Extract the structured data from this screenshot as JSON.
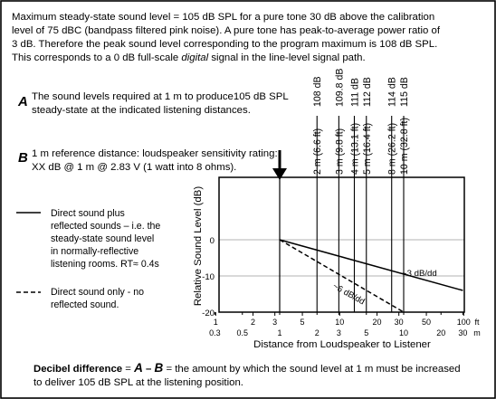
{
  "intro": {
    "line1": "Maximum steady-state sound level = 105 dB SPL for a pure tone 30 dB above the calibration",
    "line2": "level of 75 dBC (bandpass filtered pink noise). A pure tone has peak-to-average power ratio of",
    "line3": "3 dB. Therefore the peak sound level corresponding to the program maximum is 108 dB SPL.",
    "line4_pre": "This corresponds to a 0 dB full-scale ",
    "line4_em": "digital",
    "line4_post": " signal in the line-level signal path."
  },
  "section_a": {
    "letter": "A",
    "line1": "The sound levels required at 1 m to produce105 dB SPL",
    "line2": "steady-state at the indicated listening distances."
  },
  "section_b": {
    "letter": "B",
    "line1": "1 m reference distance:  loudspeaker sensitivity rating:",
    "line2": "XX dB @ 1 m @ 2.83 V (1 watt into 8 ohms)."
  },
  "legend": {
    "solid": {
      "line1": "Direct sound plus",
      "line2": "reflected sounds – i.e. the",
      "line3": "steady-state sound level",
      "line4": "in normally-reflective",
      "line5": "listening rooms. RT≈ 0.4s"
    },
    "dashed": {
      "line1": "Direct sound only - no",
      "line2": "reflected sound."
    }
  },
  "footer": {
    "term": "Decibel difference",
    "eq": " = ",
    "a": "A",
    "dash": " – ",
    "b": "B",
    "rest": " = the amount by which the sound level at 1 m must be increased",
    "line2": "to deliver 105 dB SPL at the listening position."
  },
  "chart_data": {
    "type": "line",
    "xlabel": "Distance from Loudspeaker to Listener",
    "ylabel": "Relative Sound Level (dB)",
    "x_scale": "log",
    "xlim_m": [
      0.3,
      30
    ],
    "ylim": [
      -20,
      5
    ],
    "y_ticks": [
      "0",
      "-10",
      "-20"
    ],
    "x_ticks_ft": [
      "1",
      "2",
      "3",
      "5",
      "10",
      "20",
      "30",
      "50",
      "100"
    ],
    "x_ticks_m": [
      "0.3",
      "0.5",
      "1",
      "2",
      "3",
      "5",
      "10",
      "20",
      "30"
    ],
    "x_unit_ft": "ft",
    "x_unit_m": "m",
    "reference_marker": "1 m",
    "series": [
      {
        "style": "solid",
        "label": "~3 dB/dd",
        "points": [
          [
            1,
            0
          ],
          [
            30,
            -14
          ]
        ]
      },
      {
        "style": "dashed",
        "label": "~6 dB/dd",
        "points": [
          [
            1,
            0
          ],
          [
            10,
            -20
          ]
        ]
      }
    ],
    "distances": [
      {
        "label": "2 m (6.6 ft)",
        "m": 2,
        "level": "108 dB"
      },
      {
        "label": "3 m (9.8 ft)",
        "m": 3,
        "level": "109.8 dB"
      },
      {
        "label": "4 m (13.1 ft)",
        "m": 4,
        "level": "111 dB"
      },
      {
        "label": "5 m (16.4 ft)",
        "m": 5,
        "level": "112 dB"
      },
      {
        "label": "8 m (26.2 ft)",
        "m": 8,
        "level": "114 dB"
      },
      {
        "label": "10 m (32.8 ft)",
        "m": 10,
        "level": "115 dB"
      }
    ]
  },
  "colors": {
    "frame": "#000000",
    "grid": "#9a9a9a",
    "background": "#ffffff"
  }
}
